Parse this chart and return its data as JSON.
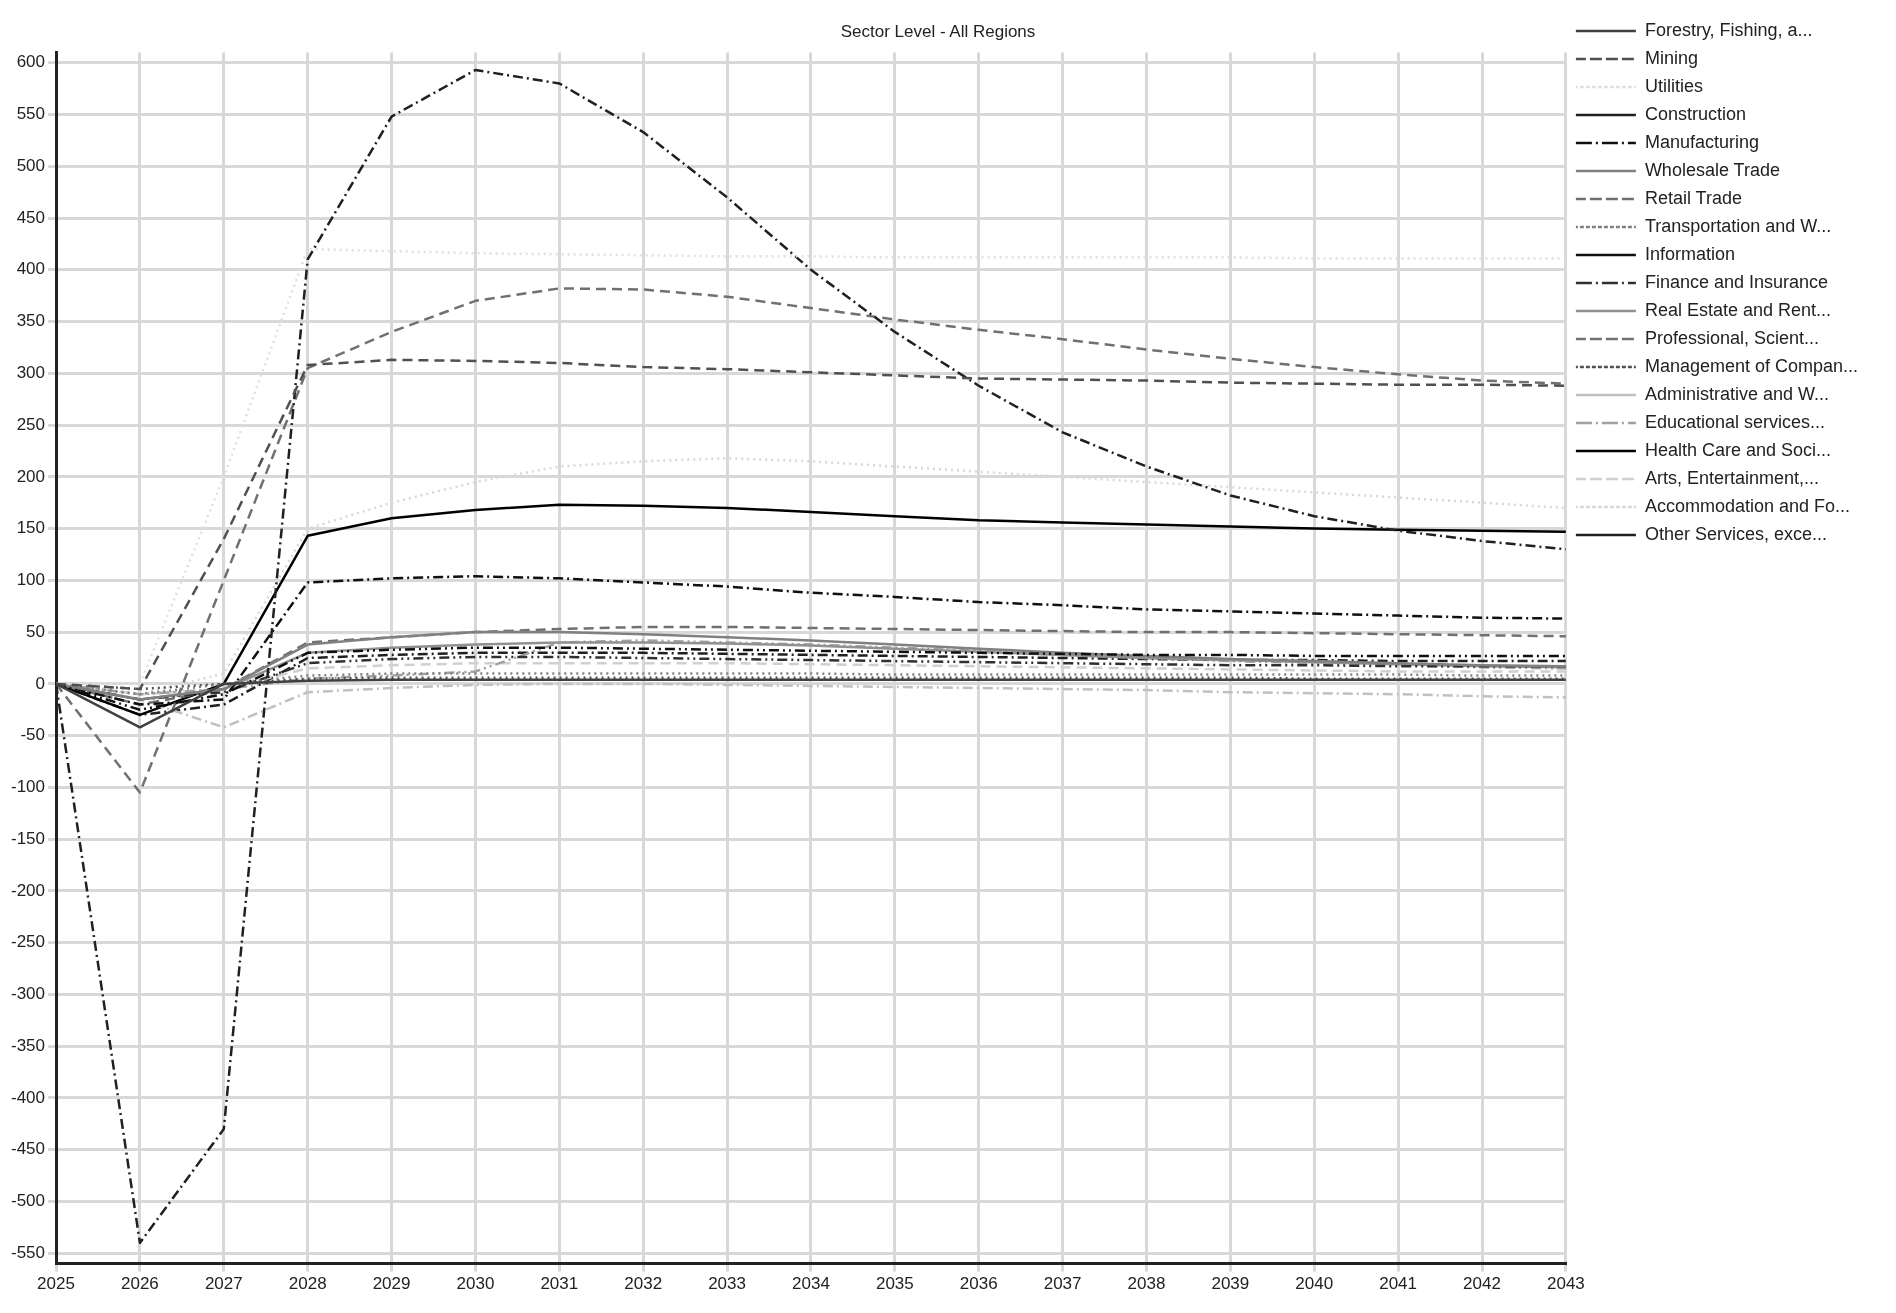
{
  "chart_data": {
    "type": "line",
    "title": "Sector Level - All Regions",
    "x": [
      2025,
      2026,
      2027,
      2028,
      2029,
      2030,
      2031,
      2032,
      2033,
      2034,
      2035,
      2036,
      2037,
      2038,
      2039,
      2040,
      2041,
      2042,
      2043
    ],
    "xlim": [
      2025,
      2043
    ],
    "xticks": [
      2025,
      2026,
      2027,
      2028,
      2029,
      2030,
      2031,
      2032,
      2033,
      2034,
      2035,
      2036,
      2037,
      2038,
      2039,
      2040,
      2041,
      2042,
      2043
    ],
    "ylim": [
      -560,
      610
    ],
    "yticks": [
      -550,
      -500,
      -450,
      -400,
      -350,
      -300,
      -250,
      -200,
      -150,
      -100,
      -50,
      0,
      50,
      100,
      150,
      200,
      250,
      300,
      350,
      400,
      450,
      500,
      550,
      600
    ],
    "grid": true,
    "legend": "right",
    "marker": "none",
    "series": [
      {
        "name": "Forestry, Fishing, a...",
        "color": "#404040",
        "line_style": "solid",
        "values": [
          0,
          -42,
          0,
          3,
          4,
          4,
          4,
          4,
          4,
          4,
          4,
          4,
          4,
          4,
          4,
          4,
          4,
          4,
          4
        ]
      },
      {
        "name": "Mining",
        "color": "#505050",
        "line_style": "dashed",
        "values": [
          0,
          -5,
          140,
          308,
          313,
          312,
          310,
          306,
          304,
          301,
          298,
          295,
          294,
          293,
          291,
          290,
          289,
          289,
          288
        ]
      },
      {
        "name": "Utilities",
        "color": "#e0e0e0",
        "line_style": "dotted",
        "values": [
          0,
          0,
          200,
          420,
          418,
          416,
          415,
          414,
          413,
          413,
          412,
          412,
          412,
          412,
          412,
          411,
          411,
          411,
          411
        ]
      },
      {
        "name": "Construction",
        "color": "#202020",
        "line_style": "dashdot",
        "values": [
          0,
          -540,
          -430,
          410,
          548,
          593,
          580,
          533,
          470,
          400,
          340,
          288,
          243,
          210,
          182,
          162,
          148,
          138,
          130
        ]
      },
      {
        "name": "Manufacturing",
        "color": "#101010",
        "line_style": "dashdotdot",
        "values": [
          0,
          -25,
          -10,
          30,
          33,
          35,
          35,
          34,
          33,
          32,
          31,
          30,
          29,
          28,
          28,
          27,
          27,
          27,
          27
        ]
      },
      {
        "name": "Wholesale Trade",
        "color": "#808080",
        "line_style": "solid",
        "values": [
          0,
          -15,
          -5,
          38,
          45,
          50,
          50,
          48,
          45,
          42,
          38,
          34,
          30,
          27,
          24,
          22,
          20,
          18,
          17
        ]
      },
      {
        "name": "Retail Trade",
        "color": "#707070",
        "line_style": "dashed",
        "values": [
          0,
          -105,
          100,
          305,
          340,
          370,
          382,
          381,
          374,
          363,
          352,
          342,
          333,
          323,
          314,
          306,
          299,
          293,
          290
        ]
      },
      {
        "name": "Transportation and W...",
        "color": "#808080",
        "line_style": "dotted",
        "values": [
          0,
          -10,
          0,
          8,
          10,
          10,
          10,
          10,
          10,
          10,
          9,
          9,
          9,
          9,
          9,
          9,
          9,
          8,
          8
        ]
      },
      {
        "name": "Information",
        "color": "#101010",
        "line_style": "dashdot",
        "values": [
          0,
          -20,
          -15,
          98,
          102,
          104,
          102,
          98,
          94,
          88,
          84,
          79,
          76,
          72,
          70,
          68,
          66,
          64,
          63
        ]
      },
      {
        "name": "Finance and Insurance",
        "color": "#303030",
        "line_style": "dashdotdot",
        "values": [
          0,
          -15,
          -8,
          20,
          24,
          26,
          26,
          25,
          24,
          23,
          22,
          21,
          20,
          19,
          18,
          18,
          17,
          17,
          17
        ]
      },
      {
        "name": "Real Estate and Rent...",
        "color": "#909090",
        "line_style": "solid",
        "values": [
          0,
          -15,
          -5,
          30,
          35,
          38,
          40,
          40,
          39,
          37,
          34,
          31,
          28,
          25,
          23,
          21,
          19,
          17,
          16
        ]
      },
      {
        "name": "Professional, Scient...",
        "color": "#707070",
        "line_style": "dashed",
        "values": [
          0,
          -20,
          -5,
          40,
          45,
          50,
          53,
          55,
          55,
          54,
          53,
          52,
          51,
          50,
          50,
          49,
          48,
          47,
          46
        ]
      },
      {
        "name": "Management of Compan...",
        "color": "#505050",
        "line_style": "dotted",
        "values": [
          0,
          -5,
          0,
          5,
          6,
          6,
          6,
          6,
          6,
          6,
          6,
          6,
          6,
          6,
          6,
          5,
          5,
          5,
          5
        ]
      },
      {
        "name": "Administrative and W...",
        "color": "#c0c0c0",
        "line_style": "dashdot",
        "values": [
          0,
          -15,
          -42,
          -8,
          -4,
          -1,
          0,
          0,
          -1,
          -2,
          -3,
          -4,
          -5,
          -6,
          -8,
          -9,
          -10,
          -12,
          -13
        ]
      },
      {
        "name": "Educational services...",
        "color": "#a0a0a0",
        "line_style": "dashdotdot",
        "values": [
          0,
          -10,
          -5,
          5,
          8,
          12,
          40,
          42,
          40,
          38,
          35,
          32,
          28,
          25,
          22,
          20,
          18,
          16,
          15
        ]
      },
      {
        "name": "Health Care and Soci...",
        "color": "#000000",
        "line_style": "solid",
        "values": [
          0,
          -30,
          0,
          143,
          160,
          168,
          173,
          172,
          170,
          166,
          162,
          158,
          156,
          154,
          152,
          150,
          149,
          148,
          147
        ]
      },
      {
        "name": "Arts, Entertainment,...",
        "color": "#d0d0d0",
        "line_style": "dashed",
        "values": [
          0,
          -10,
          -5,
          15,
          18,
          20,
          20,
          20,
          20,
          19,
          18,
          17,
          16,
          15,
          14,
          13,
          12,
          12,
          12
        ]
      },
      {
        "name": "Accommodation and Fo...",
        "color": "#d8d8d8",
        "line_style": "dotted",
        "values": [
          0,
          -10,
          10,
          150,
          175,
          195,
          210,
          215,
          218,
          215,
          210,
          205,
          200,
          195,
          190,
          185,
          180,
          175,
          170
        ]
      },
      {
        "name": "Other Services, exce...",
        "color": "#202020",
        "line_style": "dashdot",
        "values": [
          0,
          -30,
          -20,
          25,
          28,
          30,
          30,
          30,
          29,
          28,
          27,
          26,
          25,
          24,
          23,
          23,
          22,
          22,
          22
        ]
      }
    ]
  }
}
